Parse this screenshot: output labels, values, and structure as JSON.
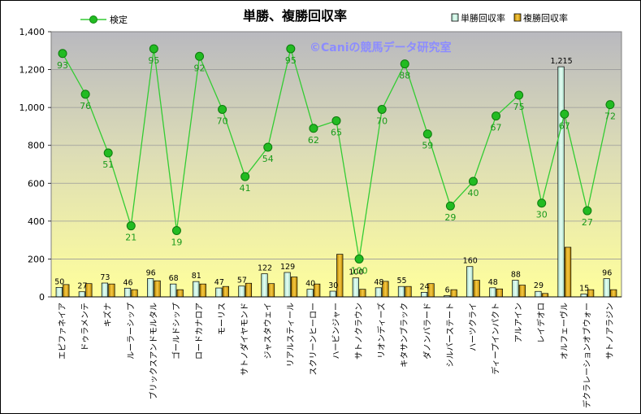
{
  "chart_data": {
    "type": "bar+line",
    "title": "単勝、複勝回収率",
    "watermark": "©Caniの競馬データ研究室",
    "categories": [
      "エピファネイア",
      "ドゥラメンテ",
      "キズナ",
      "ルーラーシップ",
      "ブリックスアンドモルタル",
      "ゴールドシップ",
      "ロードカナロア",
      "モーリス",
      "サトノダイヤモンド",
      "ジャスタウェイ",
      "リアルスティール",
      "スクリーンヒーロー",
      "ハービンジャー",
      "サトノクラウン",
      "リオンディーズ",
      "キタサンブラック",
      "ダノンバラード",
      "シルバーステート",
      "ハーツクライ",
      "ディープインパクト",
      "アルアイン",
      "レイデオロ",
      "オルフェーヴル",
      "デクラレーションオブウォー",
      "サトノアラジン"
    ],
    "y_ticks": [
      "0",
      "200",
      "400",
      "600",
      "800",
      "1,000",
      "1,200",
      "1,400"
    ],
    "ylim": [
      0,
      1400
    ],
    "grid": true,
    "series": [
      {
        "name": "単勝回収率",
        "kind": "bar",
        "color": "#ccf2e6",
        "values": [
          50,
          27,
          73,
          46,
          96,
          68,
          81,
          47,
          57,
          122,
          129,
          40,
          30,
          100,
          48,
          55,
          24,
          6,
          160,
          48,
          88,
          29,
          1215,
          15,
          96
        ],
        "labels": [
          "50",
          "27",
          "73",
          "46",
          "96",
          "68",
          "81",
          "47",
          "57",
          "122",
          "129",
          "40",
          "30",
          "100",
          "48",
          "55",
          "24",
          "6",
          "160",
          "48",
          "88",
          "29",
          "1,215",
          "15",
          "96"
        ]
      },
      {
        "name": "複勝回収率",
        "kind": "bar",
        "color": "#e6b000",
        "values": [
          65,
          70,
          68,
          38,
          85,
          38,
          68,
          55,
          72,
          70,
          105,
          68,
          225,
          40,
          82,
          55,
          70,
          38,
          88,
          42,
          62,
          18,
          262,
          38,
          38
        ]
      },
      {
        "name": "検定",
        "kind": "line",
        "color": "#33cc33",
        "values": [
          1285,
          1070,
          760,
          375,
          1310,
          350,
          1270,
          990,
          635,
          790,
          1310,
          890,
          930,
          200,
          990,
          1230,
          860,
          480,
          610,
          955,
          1065,
          495,
          965,
          455,
          1015
        ],
        "labels": [
          "93",
          "76",
          "51",
          "21",
          "95",
          "19",
          "92",
          "70",
          "41",
          "54",
          "95",
          "62",
          "65",
          "100",
          "70",
          "88",
          "59",
          "29",
          "40",
          "67",
          "75",
          "30",
          "67",
          "27",
          "72"
        ]
      }
    ],
    "legend_position": "top"
  }
}
